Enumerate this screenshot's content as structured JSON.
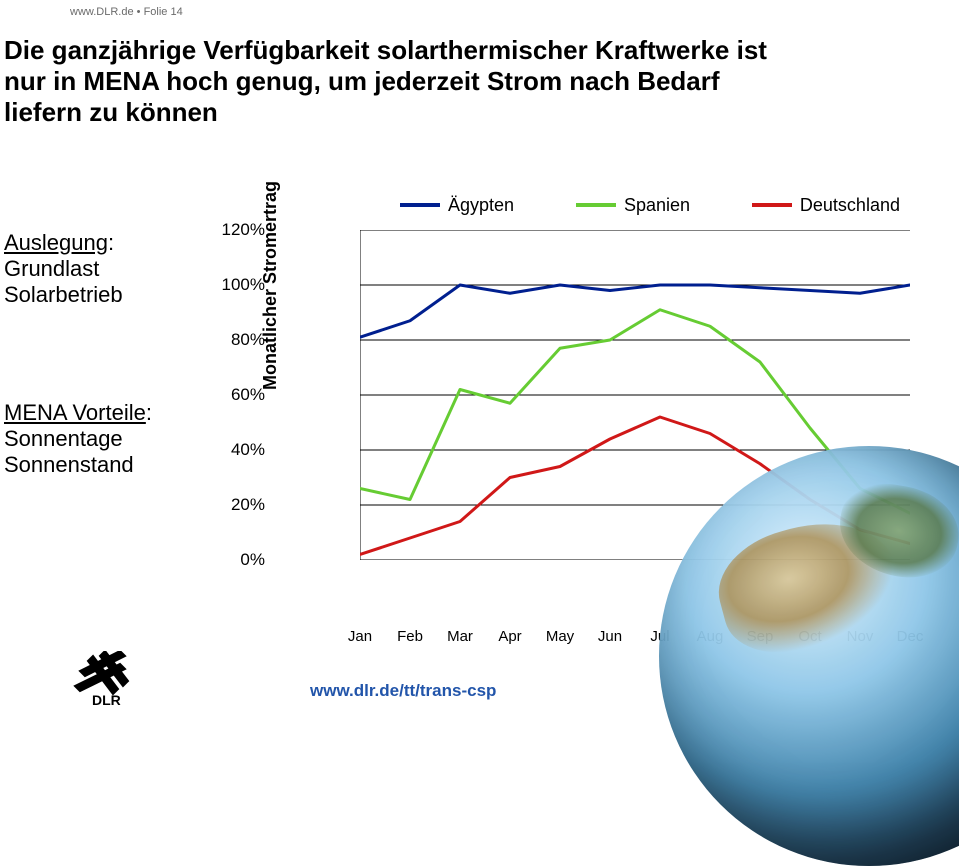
{
  "header": {
    "site": "www.DLR.de",
    "bullet": "•",
    "folie": "Folie 14"
  },
  "title_lines": [
    "Die ganzjährige Verfügbarkeit solarthermischer Kraftwerke ist",
    "nur in MENA hoch genug, um jederzeit Strom nach Bedarf",
    "liefern zu können"
  ],
  "left1": {
    "head": "Auslegung",
    "a": "Grundlast",
    "b": "Solarbetrieb"
  },
  "left2": {
    "head": "MENA Vorteile",
    "a": "Sonnentage",
    "b": "Sonnenstand"
  },
  "chart": {
    "type": "line",
    "ylabel": "Monatlicher Stromertrag",
    "ylim": [
      0,
      120
    ],
    "ytick_step": 20,
    "yticks": [
      "0%",
      "20%",
      "40%",
      "60%",
      "80%",
      "100%",
      "120%"
    ],
    "xcats": [
      "Jan",
      "Feb",
      "Mar",
      "Apr",
      "May",
      "Jun",
      "Jul",
      "Aug",
      "Sep",
      "Oct",
      "Nov",
      "Dec"
    ],
    "grid_color": "#000000",
    "background_color": "#ffffff",
    "line_width": 3,
    "legend": [
      {
        "label": "Ägypten",
        "color": "#001f8f"
      },
      {
        "label": "Spanien",
        "color": "#66cc33"
      },
      {
        "label": "Deutschland",
        "color": "#d01818"
      }
    ],
    "series": {
      "egypt": [
        81,
        87,
        100,
        97,
        100,
        98,
        100,
        100,
        99,
        98,
        97,
        100
      ],
      "spain": [
        26,
        22,
        62,
        57,
        77,
        80,
        91,
        85,
        72,
        48,
        26,
        17
      ],
      "germany": [
        2,
        8,
        14,
        30,
        34,
        44,
        52,
        46,
        35,
        22,
        11,
        6
      ]
    }
  },
  "footer_link": "www.dlr.de/tt/trans-csp"
}
